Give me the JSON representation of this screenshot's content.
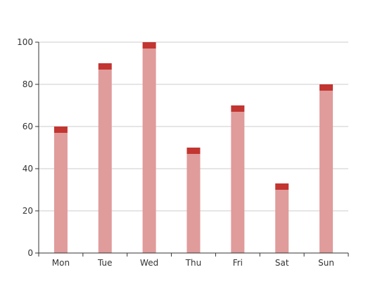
{
  "chart_data": {
    "type": "bar",
    "stacked": true,
    "categories": [
      "Mon",
      "Tue",
      "Wed",
      "Thu",
      "Fri",
      "Sat",
      "Sun"
    ],
    "series": [
      {
        "values": [
          57,
          87,
          97,
          47,
          67,
          30,
          77
        ]
      },
      {
        "values": [
          3,
          3,
          3,
          3,
          3,
          3,
          3
        ]
      }
    ],
    "y_ticks": [
      "0",
      "20",
      "40",
      "60",
      "80",
      "100"
    ],
    "ylim": [
      0,
      100
    ],
    "grid": "horizontal",
    "title": "",
    "xlabel": "",
    "ylabel": "",
    "colors": {
      "base_bar": "#e09b9b",
      "cap_bar": "#c23531",
      "grid": "#cccccc",
      "axis": "#333333",
      "text": "#333333"
    }
  }
}
